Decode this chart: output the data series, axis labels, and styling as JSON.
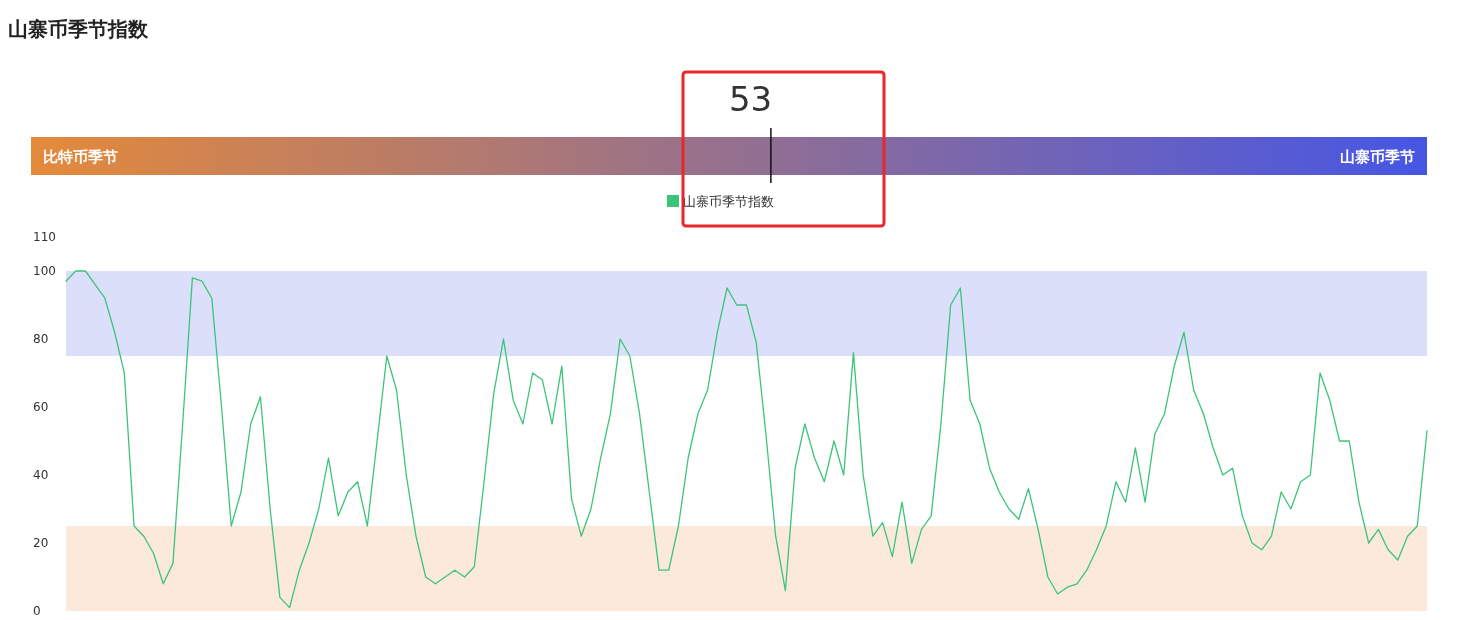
{
  "chart_data": [
    {
      "type": "other",
      "title": "山寨币季节指数",
      "categories": [
        null
      ],
      "values": [
        53
      ],
      "data_labels": true,
      "annotations": [
        "比特币季节",
        "山寨币季节"
      ]
    },
    {
      "type": "line",
      "categories": [
        null,
        null,
        null,
        null,
        null,
        null,
        null,
        null,
        null,
        null,
        null,
        null,
        null,
        null,
        null,
        null,
        null,
        null,
        null,
        null,
        null,
        null,
        null,
        null,
        null,
        null,
        null,
        null,
        null,
        null,
        null,
        null,
        null,
        null,
        null,
        null,
        null,
        null,
        null,
        null,
        null,
        null,
        null,
        null,
        null,
        null,
        null,
        null,
        null,
        null,
        null,
        null,
        null,
        null,
        null,
        null,
        null,
        null,
        null,
        null,
        null,
        null,
        null,
        null,
        null,
        null,
        null,
        null,
        null,
        null,
        null,
        null,
        null,
        null,
        null,
        null,
        null,
        null,
        null,
        null,
        null,
        null,
        null,
        null,
        null,
        null,
        null,
        null,
        null,
        null,
        null,
        null,
        null,
        null,
        null,
        null,
        null,
        null,
        null,
        null,
        null,
        null,
        null,
        null,
        null,
        null,
        null,
        null,
        null,
        null,
        null,
        null,
        null,
        null,
        null,
        null,
        null,
        null,
        null,
        null,
        null,
        null,
        null,
        null,
        null,
        null,
        null,
        null,
        null,
        null,
        null,
        null,
        null,
        null,
        null,
        null,
        null,
        null,
        null,
        null,
        null
      ],
      "series": [
        {
          "name": "山寨币季节指数",
          "color": "#3cc47a",
          "values": [
            97,
            100,
            100,
            96,
            92,
            82,
            70,
            25,
            22,
            17,
            8,
            14,
            55,
            98,
            97,
            92,
            60,
            25,
            35,
            55,
            63,
            30,
            4,
            1,
            12,
            20,
            30,
            45,
            28,
            35,
            38,
            25,
            50,
            75,
            65,
            40,
            22,
            10,
            8,
            10,
            12,
            10,
            13,
            38,
            64,
            80,
            62,
            55,
            70,
            68,
            55,
            72,
            33,
            22,
            30,
            45,
            58,
            80,
            75,
            58,
            35,
            12,
            12,
            25,
            45,
            58,
            65,
            82,
            95,
            90,
            90,
            79,
            52,
            22,
            6,
            42,
            55,
            45,
            38,
            50,
            40,
            76,
            40,
            22,
            26,
            16,
            32,
            14,
            24,
            28,
            55,
            90,
            95,
            62,
            55,
            42,
            35,
            30,
            27,
            36,
            24,
            10,
            5,
            7,
            8,
            12,
            18,
            25,
            38,
            32,
            48,
            32,
            52,
            58,
            72,
            82,
            65,
            58,
            48,
            40,
            42,
            28,
            20,
            18,
            22,
            35,
            30,
            38,
            40,
            70,
            62,
            50,
            50,
            32,
            20,
            24,
            18,
            15,
            22,
            25,
            53
          ]
        }
      ],
      "ylim": [
        0,
        110
      ],
      "yticks": [
        0,
        20,
        40,
        60,
        80,
        100,
        110
      ],
      "bands": [
        {
          "axis": "y",
          "from": 75,
          "to": 100,
          "color": "#dcdff9"
        },
        {
          "axis": "y",
          "from": 0,
          "to": 25,
          "color": "#fbe9db"
        }
      ],
      "legend": "top"
    }
  ]
}
